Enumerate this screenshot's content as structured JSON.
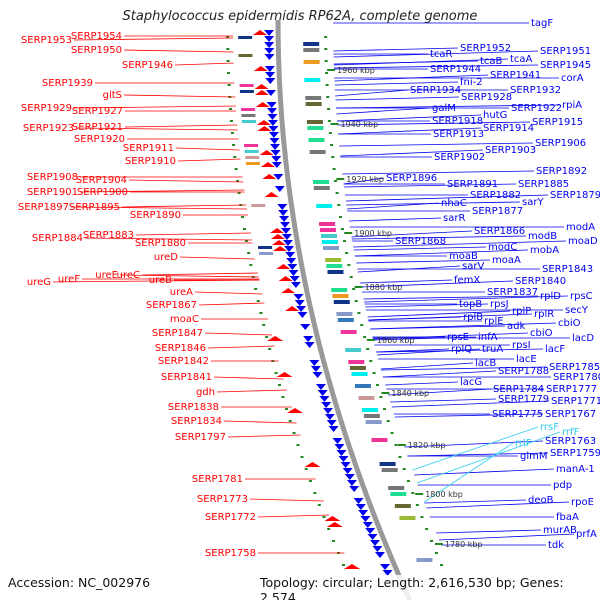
{
  "title": "Staphylococcus epidermidis RP62A, complete genome",
  "footer": {
    "accession": "Accession: NC_002976",
    "topology": "Topology: circular; Length: 2,616,530 bp; Genes: 2,574"
  },
  "colors": {
    "forward": "#ff0000",
    "reverse": "#0000ee",
    "rna": "#33ccee",
    "backbone": "#888888",
    "tick": "#228822"
  },
  "left_labels": [
    "SERP1953",
    "SERP1954",
    "SERP1950",
    "SERP1946",
    "SERP1939",
    "gltS",
    "SERP1929",
    "SERP1927",
    "SERP1923",
    "SERP1921",
    "SERP1920",
    "SERP1911",
    "SERP1910",
    "SERP1908",
    "SERP1904",
    "SERP1901",
    "SERP1900",
    "SERP1897",
    "SERP1895",
    "SERP1890",
    "SERP1884",
    "SERP1883",
    "SERP1880",
    "ureD",
    "ureG",
    "ureF",
    "ureE",
    "ureC",
    "ureB",
    "ureA",
    "SERP1867",
    "moaC",
    "SERP1847",
    "SERP1846",
    "SERP1842",
    "SERP1841",
    "gdh",
    "SERP1838",
    "SERP1834",
    "SERP1797",
    "SERP1781",
    "SERP1773",
    "SERP1772",
    "SERP1758"
  ],
  "right_labels": [
    "tagF",
    "SERP1952",
    "SERP1951",
    "tcaR",
    "tcaB",
    "tcaA",
    "SERP1944",
    "SERP1945",
    "SERP1941",
    "corA",
    "fni-2",
    "SERP1934",
    "SERP1932",
    "SERP1928",
    "galM",
    "SERP1922",
    "rpiA",
    "hutG",
    "SERP1918",
    "SERP1915",
    "SERP1914",
    "SERP1913",
    "SERP1906",
    "SERP1903",
    "SERP1902",
    "SERP1892",
    "SERP1896",
    "SERP1891",
    "SERP1885",
    "SERP1879",
    "SERP1882",
    "sarY",
    "nhaC",
    "SERP1877",
    "sarR",
    "SERP1866",
    "modA",
    "modB",
    "moaD",
    "SERP1868",
    "modC",
    "mobA",
    "moaB",
    "moaA",
    "sarV",
    "SERP1843",
    "femX",
    "SERP1840",
    "SERP1837",
    "rplD",
    "rpsC",
    "topB",
    "rpsJ",
    "rplP",
    "secY",
    "rplB",
    "rplR",
    "rplE",
    "adk",
    "cbiO",
    "rpsE",
    "infA",
    "cbiO",
    "lacD",
    "rplQ",
    "truA",
    "rpsI",
    "lacF",
    "lacB",
    "lacE",
    "SERP1785",
    "SERP1788",
    "SERP1780",
    "lacG",
    "SERP1784",
    "SERP1777",
    "SERP1779",
    "SERP1771",
    "SERP1775",
    "SERP1767",
    "SERP1763",
    "glmM",
    "SERP1759",
    "manA-1",
    "pdp",
    "deoB",
    "rpoE",
    "fbaA",
    "murAB",
    "prfA",
    "tdk"
  ],
  "rna_labels": [
    "rrsF",
    "rrfF",
    "rrlF"
  ],
  "kbp_ticks": [
    "1960 kbp",
    "1940 kbp",
    "1920 kbp",
    "1900 kbp",
    "1880 kbp",
    "1860 kbp",
    "1840 kbp",
    "1820 kbp",
    "1800 kbp",
    "1780 kbp"
  ]
}
